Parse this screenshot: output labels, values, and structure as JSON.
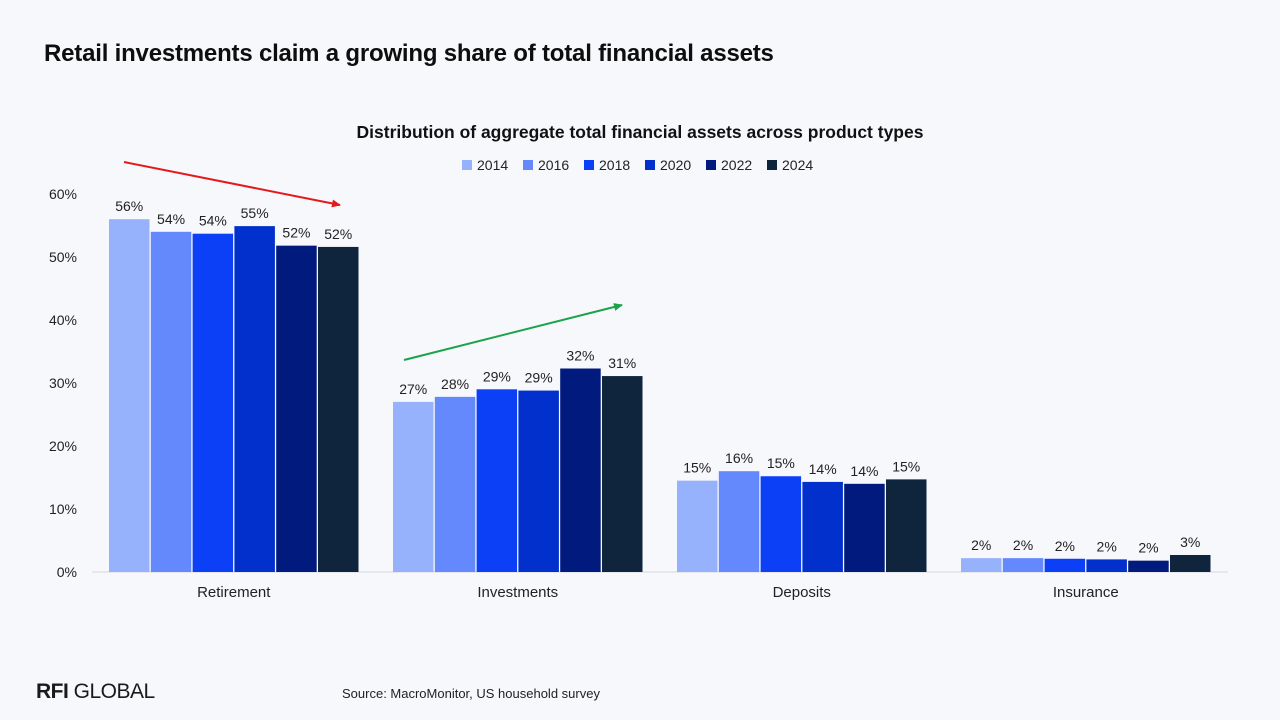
{
  "headline": "Retail investments claim a growing share of total financial assets",
  "footer": {
    "logo_bold": "RFI",
    "logo_rest": "GLOBAL",
    "source": "Source: MacroMonitor, US household survey"
  },
  "colors": {
    "series": [
      "#97b2fc",
      "#6489fc",
      "#0c40f7",
      "#0130cc",
      "#001a7d",
      "#0f253e"
    ],
    "down_arrow": "#e31a1c",
    "up_arrow": "#1aa34a"
  },
  "chart_data": {
    "type": "bar",
    "title": "Distribution of aggregate total financial assets across product types",
    "categories": [
      "Retirement",
      "Investments",
      "Deposits",
      "Insurance"
    ],
    "ylim": [
      0,
      60
    ],
    "yticks": [
      0,
      10,
      20,
      30,
      40,
      50,
      60
    ],
    "ytick_labels": [
      "0%",
      "10%",
      "20%",
      "30%",
      "40%",
      "50%",
      "60%"
    ],
    "grid": false,
    "legend": "top-center",
    "series": [
      {
        "name": "2014",
        "values": [
          56,
          27,
          14.5,
          2.2
        ],
        "labels": [
          "56%",
          "27%",
          "15%",
          "2%"
        ]
      },
      {
        "name": "2016",
        "values": [
          54,
          27.8,
          16,
          2.2
        ],
        "labels": [
          "54%",
          "28%",
          "16%",
          "2%"
        ]
      },
      {
        "name": "2018",
        "values": [
          53.7,
          29,
          15.2,
          2.1
        ],
        "labels": [
          "54%",
          "29%",
          "15%",
          "2%"
        ]
      },
      {
        "name": "2020",
        "values": [
          54.9,
          28.8,
          14.3,
          2.0
        ],
        "labels": [
          "55%",
          "29%",
          "14%",
          "2%"
        ]
      },
      {
        "name": "2022",
        "values": [
          51.8,
          32.3,
          14.0,
          1.8
        ],
        "labels": [
          "52%",
          "32%",
          "14%",
          "2%"
        ]
      },
      {
        "name": "2024",
        "values": [
          51.6,
          31.1,
          14.7,
          2.7
        ],
        "labels": [
          "52%",
          "31%",
          "15%",
          "3%"
        ]
      }
    ],
    "annotations": [
      {
        "type": "arrow",
        "trend": "down",
        "category": "Retirement",
        "color": "red"
      },
      {
        "type": "arrow",
        "trend": "up",
        "category": "Investments",
        "color": "green"
      }
    ]
  }
}
